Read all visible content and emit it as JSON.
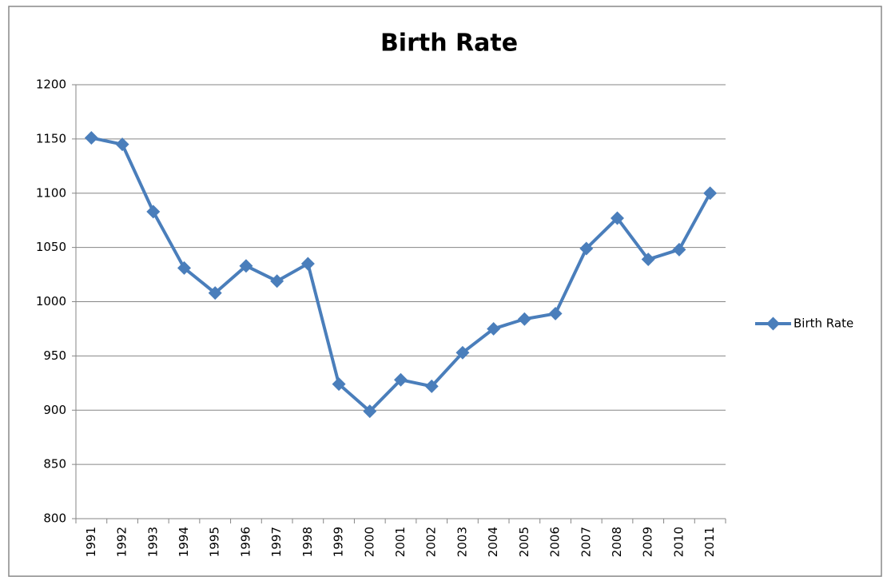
{
  "chart_data": {
    "type": "line",
    "title": "Birth Rate",
    "categories": [
      "1991",
      "1992",
      "1993",
      "1994",
      "1995",
      "1996",
      "1997",
      "1998",
      "1999",
      "2000",
      "2001",
      "2002",
      "2003",
      "2004",
      "2005",
      "2006",
      "2007",
      "2008",
      "2009",
      "2010",
      "2011"
    ],
    "series": [
      {
        "name": "Birth Rate",
        "color": "#4a7ebb",
        "values": [
          1151,
          1145,
          1083,
          1031,
          1008,
          1033,
          1019,
          1035,
          924,
          899,
          928,
          922,
          953,
          975,
          984,
          989,
          1049,
          1077,
          1039,
          1048,
          1100
        ]
      }
    ],
    "ylim": [
      800,
      1200
    ],
    "yticks": [
      800,
      850,
      900,
      950,
      1000,
      1050,
      1100,
      1150,
      1200
    ],
    "grid": true,
    "legend": "right"
  }
}
